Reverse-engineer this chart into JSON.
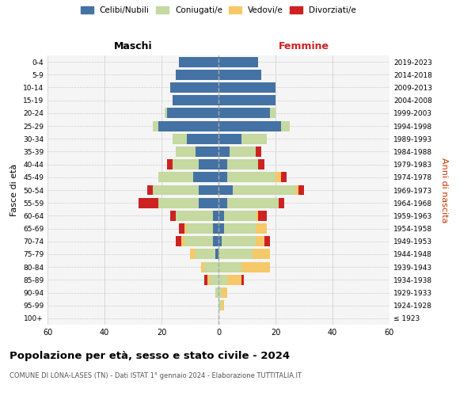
{
  "age_groups": [
    "100+",
    "95-99",
    "90-94",
    "85-89",
    "80-84",
    "75-79",
    "70-74",
    "65-69",
    "60-64",
    "55-59",
    "50-54",
    "45-49",
    "40-44",
    "35-39",
    "30-34",
    "25-29",
    "20-24",
    "15-19",
    "10-14",
    "5-9",
    "0-4"
  ],
  "birth_years": [
    "≤ 1923",
    "1924-1928",
    "1929-1933",
    "1934-1938",
    "1939-1943",
    "1944-1948",
    "1949-1953",
    "1954-1958",
    "1959-1963",
    "1964-1968",
    "1969-1973",
    "1974-1978",
    "1979-1983",
    "1984-1988",
    "1989-1993",
    "1994-1998",
    "1999-2003",
    "2004-2008",
    "2009-2013",
    "2014-2018",
    "2019-2023"
  ],
  "maschi": {
    "celibi": [
      0,
      0,
      0,
      0,
      0,
      1,
      2,
      2,
      2,
      7,
      7,
      9,
      7,
      8,
      11,
      21,
      18,
      16,
      17,
      15,
      14
    ],
    "coniugati": [
      0,
      0,
      1,
      3,
      5,
      7,
      10,
      9,
      13,
      14,
      16,
      12,
      9,
      7,
      5,
      2,
      1,
      0,
      0,
      0,
      0
    ],
    "vedovi": [
      0,
      0,
      0,
      1,
      1,
      2,
      1,
      1,
      0,
      0,
      0,
      0,
      0,
      0,
      0,
      0,
      0,
      0,
      0,
      0,
      0
    ],
    "divorziati": [
      0,
      0,
      0,
      1,
      0,
      0,
      2,
      2,
      2,
      7,
      2,
      0,
      2,
      0,
      0,
      0,
      0,
      0,
      0,
      0,
      0
    ]
  },
  "femmine": {
    "nubili": [
      0,
      0,
      0,
      0,
      0,
      0,
      1,
      2,
      2,
      3,
      5,
      3,
      3,
      4,
      8,
      22,
      18,
      20,
      20,
      15,
      14
    ],
    "coniugate": [
      0,
      1,
      1,
      3,
      8,
      12,
      12,
      11,
      11,
      18,
      22,
      17,
      11,
      9,
      9,
      3,
      2,
      0,
      0,
      0,
      0
    ],
    "vedove": [
      0,
      1,
      2,
      5,
      10,
      6,
      3,
      4,
      1,
      0,
      1,
      2,
      0,
      0,
      0,
      0,
      0,
      0,
      0,
      0,
      0
    ],
    "divorziate": [
      0,
      0,
      0,
      1,
      0,
      0,
      2,
      0,
      3,
      2,
      2,
      2,
      2,
      2,
      0,
      0,
      0,
      0,
      0,
      0,
      0
    ]
  },
  "colors": {
    "celibi": "#4472a4",
    "coniugati": "#c5d9a0",
    "vedovi": "#f5c96a",
    "divorziati": "#cc2222"
  },
  "xlim": 60,
  "title": "Popolazione per età, sesso e stato civile - 2024",
  "subtitle": "COMUNE DI LONA-LASES (TN) - Dati ISTAT 1° gennaio 2024 - Elaborazione TUTTITALIA.IT",
  "ylabel_left": "Fasce di età",
  "ylabel_right": "Anni di nascita",
  "xlabel_left": "Maschi",
  "xlabel_right": "Femmine"
}
